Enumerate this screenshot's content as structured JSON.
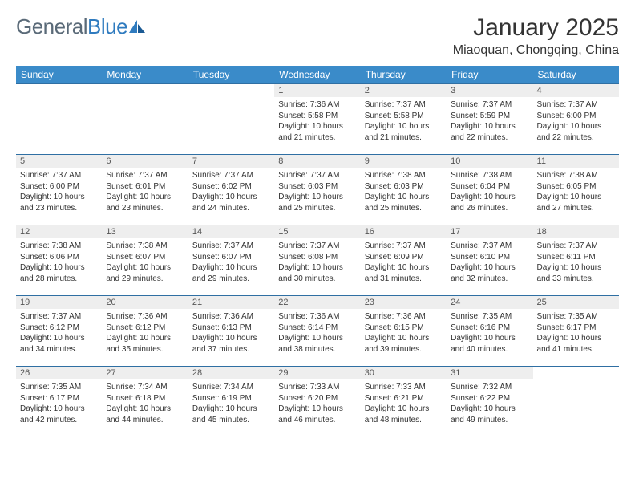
{
  "brand": {
    "part1": "General",
    "part2": "Blue"
  },
  "title": "January 2025",
  "location": "Miaoquan, Chongqing, China",
  "colors": {
    "header_bg": "#3a8bc9",
    "header_text": "#ffffff",
    "daynum_bg": "#eeeeee",
    "border": "#2f6fa3",
    "logo_gray": "#5a6a78",
    "logo_blue": "#2f7bbf",
    "page_bg": "#ffffff",
    "text": "#333333"
  },
  "typography": {
    "title_fontsize": 30,
    "location_fontsize": 16,
    "dayheader_fontsize": 12,
    "daynum_fontsize": 11,
    "detail_fontsize": 10
  },
  "day_names": [
    "Sunday",
    "Monday",
    "Tuesday",
    "Wednesday",
    "Thursday",
    "Friday",
    "Saturday"
  ],
  "weeks": [
    [
      null,
      null,
      null,
      {
        "n": "1",
        "sr": "7:36 AM",
        "ss": "5:58 PM",
        "dl": "10 hours and 21 minutes."
      },
      {
        "n": "2",
        "sr": "7:37 AM",
        "ss": "5:58 PM",
        "dl": "10 hours and 21 minutes."
      },
      {
        "n": "3",
        "sr": "7:37 AM",
        "ss": "5:59 PM",
        "dl": "10 hours and 22 minutes."
      },
      {
        "n": "4",
        "sr": "7:37 AM",
        "ss": "6:00 PM",
        "dl": "10 hours and 22 minutes."
      }
    ],
    [
      {
        "n": "5",
        "sr": "7:37 AM",
        "ss": "6:00 PM",
        "dl": "10 hours and 23 minutes."
      },
      {
        "n": "6",
        "sr": "7:37 AM",
        "ss": "6:01 PM",
        "dl": "10 hours and 23 minutes."
      },
      {
        "n": "7",
        "sr": "7:37 AM",
        "ss": "6:02 PM",
        "dl": "10 hours and 24 minutes."
      },
      {
        "n": "8",
        "sr": "7:37 AM",
        "ss": "6:03 PM",
        "dl": "10 hours and 25 minutes."
      },
      {
        "n": "9",
        "sr": "7:38 AM",
        "ss": "6:03 PM",
        "dl": "10 hours and 25 minutes."
      },
      {
        "n": "10",
        "sr": "7:38 AM",
        "ss": "6:04 PM",
        "dl": "10 hours and 26 minutes."
      },
      {
        "n": "11",
        "sr": "7:38 AM",
        "ss": "6:05 PM",
        "dl": "10 hours and 27 minutes."
      }
    ],
    [
      {
        "n": "12",
        "sr": "7:38 AM",
        "ss": "6:06 PM",
        "dl": "10 hours and 28 minutes."
      },
      {
        "n": "13",
        "sr": "7:38 AM",
        "ss": "6:07 PM",
        "dl": "10 hours and 29 minutes."
      },
      {
        "n": "14",
        "sr": "7:37 AM",
        "ss": "6:07 PM",
        "dl": "10 hours and 29 minutes."
      },
      {
        "n": "15",
        "sr": "7:37 AM",
        "ss": "6:08 PM",
        "dl": "10 hours and 30 minutes."
      },
      {
        "n": "16",
        "sr": "7:37 AM",
        "ss": "6:09 PM",
        "dl": "10 hours and 31 minutes."
      },
      {
        "n": "17",
        "sr": "7:37 AM",
        "ss": "6:10 PM",
        "dl": "10 hours and 32 minutes."
      },
      {
        "n": "18",
        "sr": "7:37 AM",
        "ss": "6:11 PM",
        "dl": "10 hours and 33 minutes."
      }
    ],
    [
      {
        "n": "19",
        "sr": "7:37 AM",
        "ss": "6:12 PM",
        "dl": "10 hours and 34 minutes."
      },
      {
        "n": "20",
        "sr": "7:36 AM",
        "ss": "6:12 PM",
        "dl": "10 hours and 35 minutes."
      },
      {
        "n": "21",
        "sr": "7:36 AM",
        "ss": "6:13 PM",
        "dl": "10 hours and 37 minutes."
      },
      {
        "n": "22",
        "sr": "7:36 AM",
        "ss": "6:14 PM",
        "dl": "10 hours and 38 minutes."
      },
      {
        "n": "23",
        "sr": "7:36 AM",
        "ss": "6:15 PM",
        "dl": "10 hours and 39 minutes."
      },
      {
        "n": "24",
        "sr": "7:35 AM",
        "ss": "6:16 PM",
        "dl": "10 hours and 40 minutes."
      },
      {
        "n": "25",
        "sr": "7:35 AM",
        "ss": "6:17 PM",
        "dl": "10 hours and 41 minutes."
      }
    ],
    [
      {
        "n": "26",
        "sr": "7:35 AM",
        "ss": "6:17 PM",
        "dl": "10 hours and 42 minutes."
      },
      {
        "n": "27",
        "sr": "7:34 AM",
        "ss": "6:18 PM",
        "dl": "10 hours and 44 minutes."
      },
      {
        "n": "28",
        "sr": "7:34 AM",
        "ss": "6:19 PM",
        "dl": "10 hours and 45 minutes."
      },
      {
        "n": "29",
        "sr": "7:33 AM",
        "ss": "6:20 PM",
        "dl": "10 hours and 46 minutes."
      },
      {
        "n": "30",
        "sr": "7:33 AM",
        "ss": "6:21 PM",
        "dl": "10 hours and 48 minutes."
      },
      {
        "n": "31",
        "sr": "7:32 AM",
        "ss": "6:22 PM",
        "dl": "10 hours and 49 minutes."
      },
      null
    ]
  ],
  "labels": {
    "sunrise": "Sunrise: ",
    "sunset": "Sunset: ",
    "daylight": "Daylight: "
  }
}
